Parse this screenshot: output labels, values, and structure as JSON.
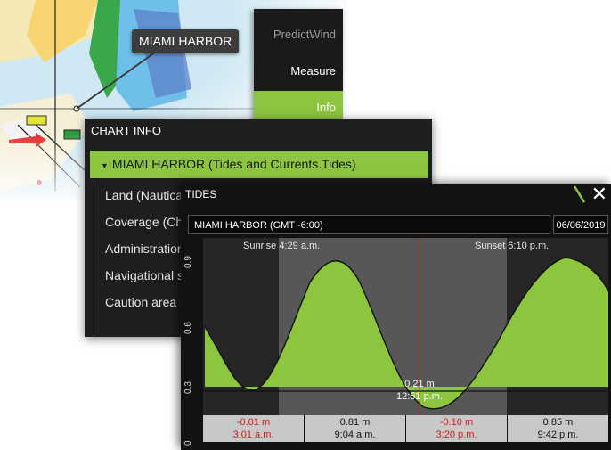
{
  "chart_callout": {
    "label": "MIAMI HARBOR"
  },
  "side_menu": {
    "items": [
      {
        "label": "PredictWind",
        "state": "dim"
      },
      {
        "label": "Measure",
        "state": "normal"
      },
      {
        "label": "Info",
        "state": "selected"
      }
    ]
  },
  "chart_info": {
    "title": "CHART INFO",
    "selected_item": "MIAMI HARBOR (Tides and Currents.Tides)",
    "items": [
      "Land (Nautica",
      "Coverage (Cha",
      "Administration",
      "Navigational s",
      "Caution area ("
    ]
  },
  "tides": {
    "title": "TIDES",
    "location": "MIAMI HARBOR  (GMT -6:00)",
    "date": "06/06/2019",
    "sunrise": "Sunrise 4:29 a.m.",
    "sunset": "Sunset 6:10 p.m.",
    "current_value": "0.21 m",
    "current_time": "12:51 p.m.",
    "y_ticks": [
      "0",
      "0.3",
      "0.6",
      "0.9"
    ],
    "extremes": [
      {
        "value": "-0.01 m",
        "time": "3:01 a.m.",
        "type": "low"
      },
      {
        "value": "0.81 m",
        "time": "9:04 a.m.",
        "type": "high"
      },
      {
        "value": "-0.10 m",
        "time": "3:20 p.m.",
        "type": "low"
      },
      {
        "value": "0.85 m",
        "time": "9:42 p.m.",
        "type": "high"
      }
    ],
    "colors": {
      "fill": "#8cc63f",
      "current_line": "#cc2222",
      "night": "#262626",
      "day": "#575757"
    }
  }
}
